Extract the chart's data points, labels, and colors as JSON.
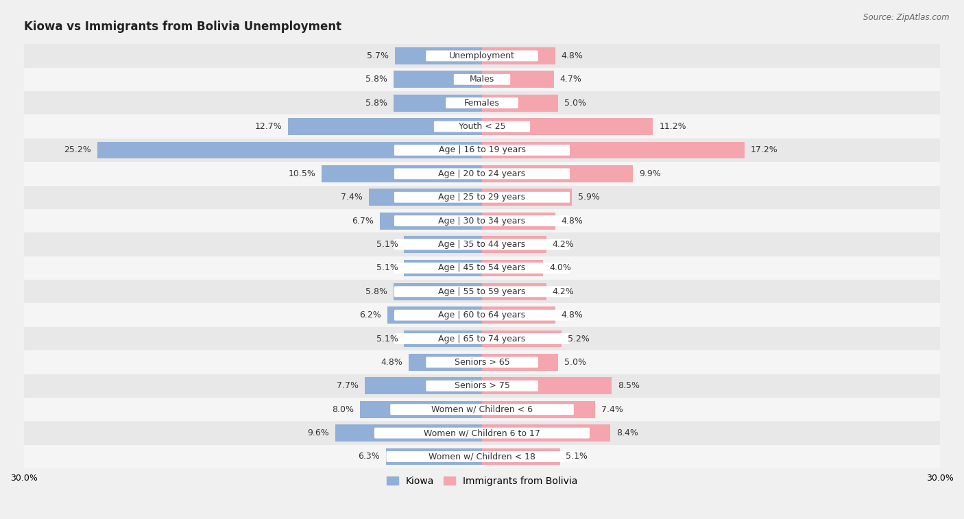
{
  "title": "Kiowa vs Immigrants from Bolivia Unemployment",
  "source": "Source: ZipAtlas.com",
  "categories": [
    "Unemployment",
    "Males",
    "Females",
    "Youth < 25",
    "Age | 16 to 19 years",
    "Age | 20 to 24 years",
    "Age | 25 to 29 years",
    "Age | 30 to 34 years",
    "Age | 35 to 44 years",
    "Age | 45 to 54 years",
    "Age | 55 to 59 years",
    "Age | 60 to 64 years",
    "Age | 65 to 74 years",
    "Seniors > 65",
    "Seniors > 75",
    "Women w/ Children < 6",
    "Women w/ Children 6 to 17",
    "Women w/ Children < 18"
  ],
  "kiowa": [
    5.7,
    5.8,
    5.8,
    12.7,
    25.2,
    10.5,
    7.4,
    6.7,
    5.1,
    5.1,
    5.8,
    6.2,
    5.1,
    4.8,
    7.7,
    8.0,
    9.6,
    6.3
  ],
  "bolivia": [
    4.8,
    4.7,
    5.0,
    11.2,
    17.2,
    9.9,
    5.9,
    4.8,
    4.2,
    4.0,
    4.2,
    4.8,
    5.2,
    5.0,
    8.5,
    7.4,
    8.4,
    5.1
  ],
  "kiowa_color": "#92afd7",
  "bolivia_color": "#f4a5ae",
  "bar_height": 0.72,
  "xlim": 30.0,
  "bg_color": "#f0f0f0",
  "row_even_color": "#e8e8e8",
  "row_odd_color": "#f5f5f5",
  "label_fontsize": 9.0,
  "title_fontsize": 12,
  "legend_fontsize": 10,
  "value_fontsize": 9.0
}
